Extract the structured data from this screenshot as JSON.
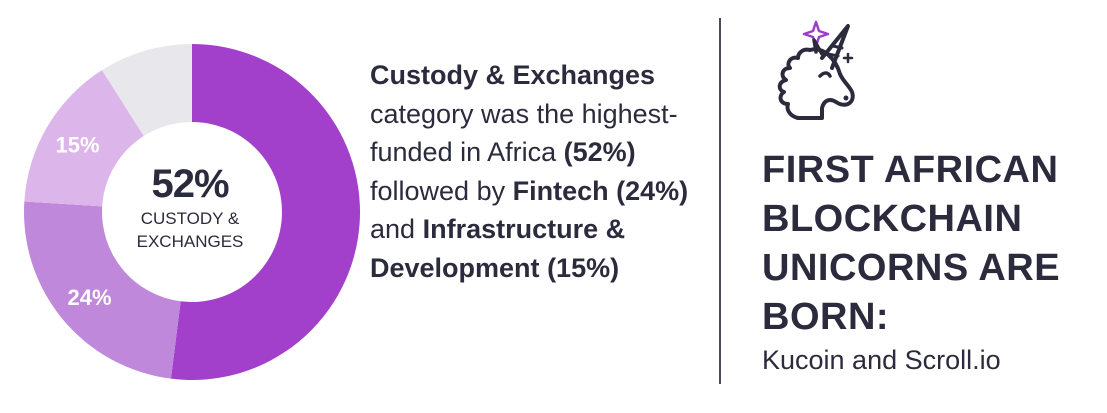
{
  "chart_data": {
    "type": "pie",
    "style": "donut",
    "slices": [
      {
        "label": "Custody & Exchanges",
        "value": 52,
        "display": "",
        "color": "#a23fcb"
      },
      {
        "label": "Fintech",
        "value": 24,
        "display": "24%",
        "color": "#c088da"
      },
      {
        "label": "Infrastructure & Development",
        "value": 15,
        "display": "15%",
        "color": "#dcb6ea"
      },
      {
        "label": "",
        "value": 9,
        "display": "",
        "color": "#e8e8ec"
      }
    ],
    "center": {
      "value": "52%",
      "label": "CUSTODY &\nEXCHANGES"
    }
  },
  "description": {
    "line1_bold": "Custody & Exchanges",
    "line1_rest": "category was the highest-funded in Africa",
    "pct1": "(52%)",
    "mid": "followed by",
    "fintech": "Fintech",
    "pct2": "(24%)",
    "and": "and",
    "infra": "Infrastructure & Development",
    "pct3": "(15%)"
  },
  "icon": "unicorn-icon",
  "headline": [
    "FIRST AFRICAN",
    "BLOCKCHAIN",
    "UNICORNS ARE",
    "BORN:"
  ],
  "subline": "Kucoin and Scroll.io",
  "colors": {
    "text": "#2b2b3d",
    "accent": "#a23fcb",
    "sparkle": "#9b3fc8"
  }
}
